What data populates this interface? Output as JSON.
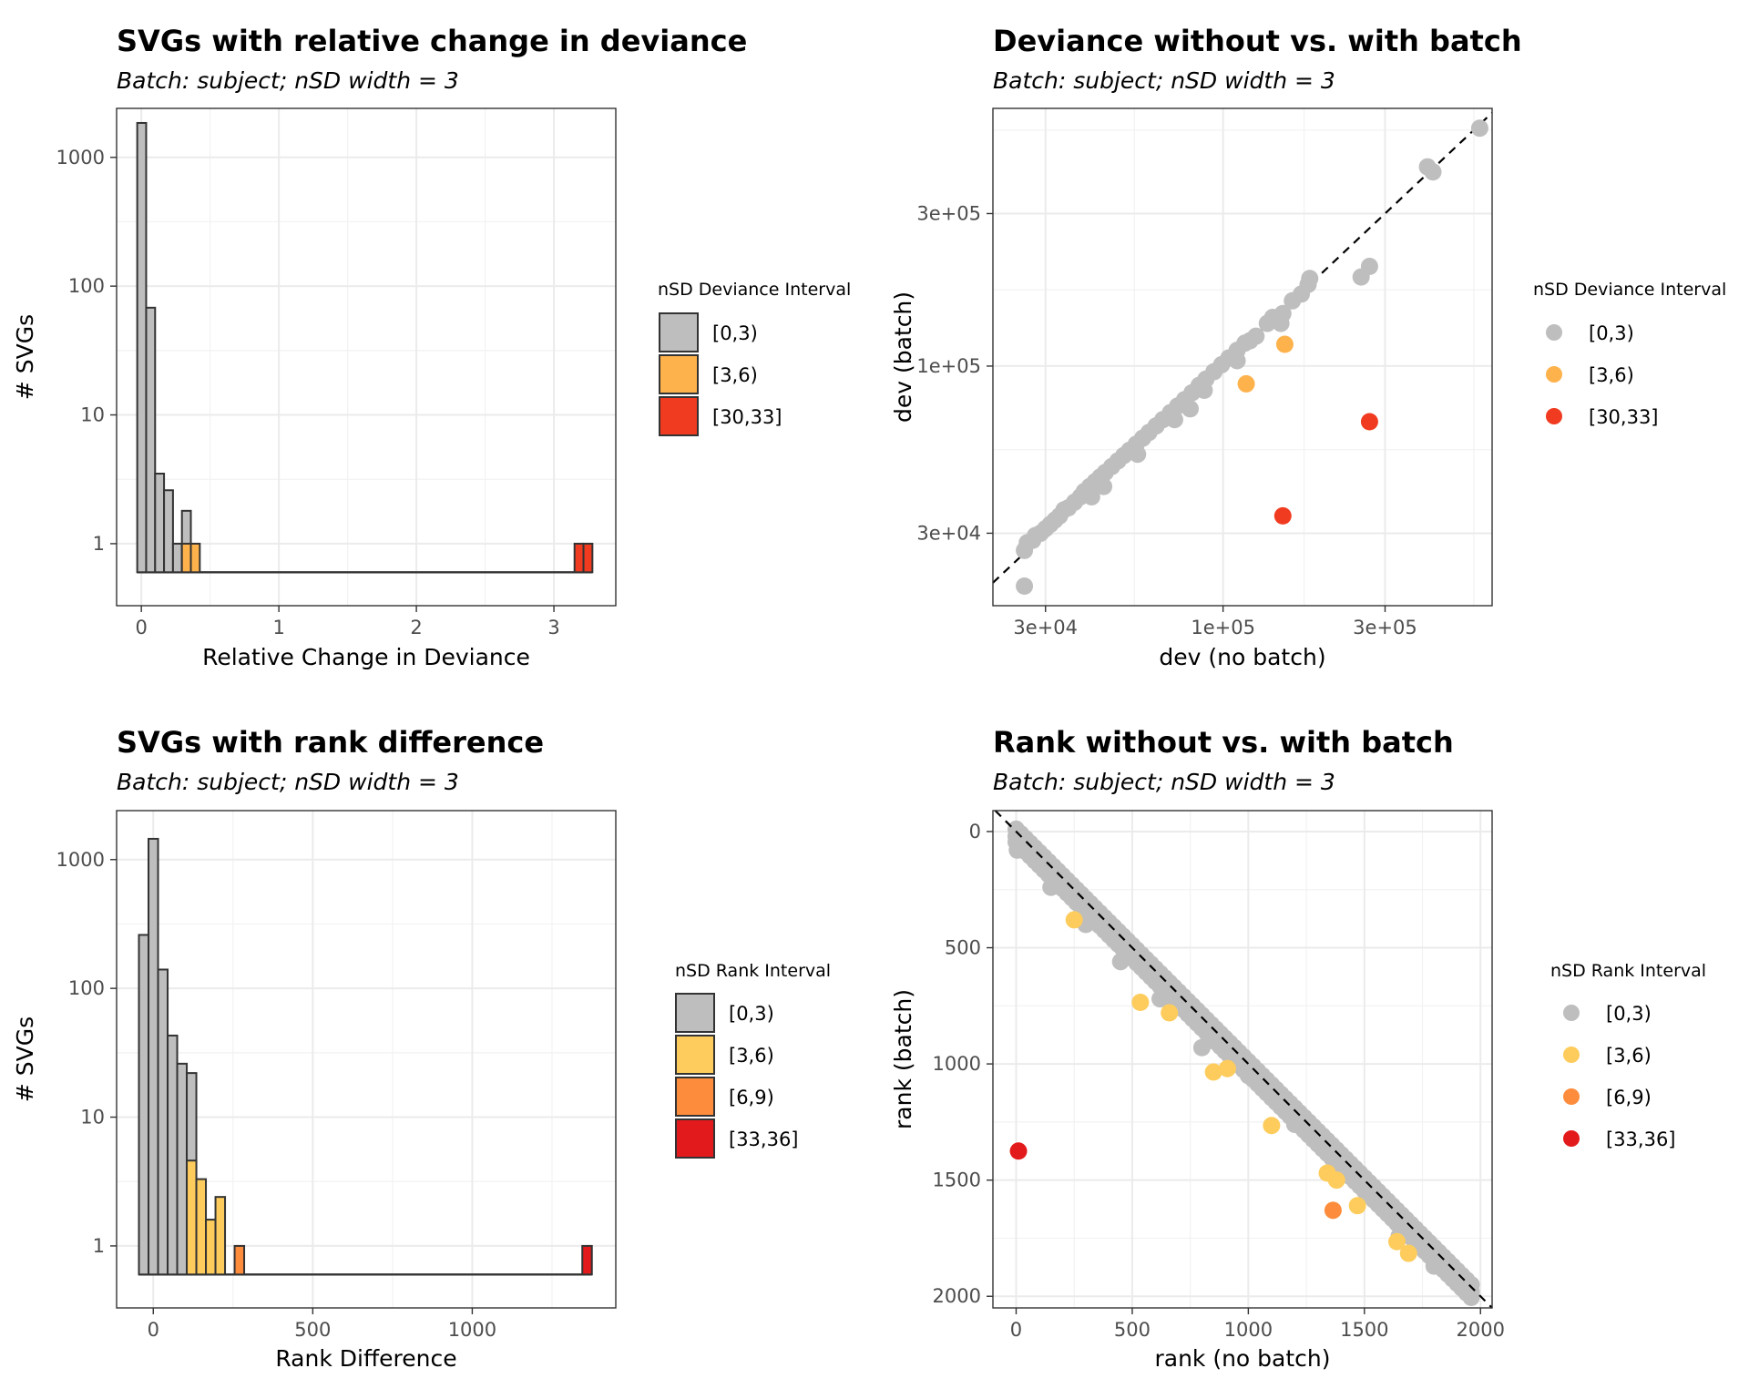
{
  "chart_data": [
    {
      "type": "bar",
      "title": "SVGs with relative change in deviance",
      "subtitle": "Batch: subject; nSD width = 3",
      "xlabel": "Relative Change in Deviance",
      "ylabel": "# SVGs",
      "xlim": [
        -0.18,
        3.45
      ],
      "ylim": [
        0.33,
        2400
      ],
      "y_scale": "log10",
      "y_baseline": 0.6,
      "xticks": [
        0,
        1,
        2,
        3
      ],
      "xtick_labels": [
        "0",
        "1",
        "2",
        "3"
      ],
      "yticks": [
        1,
        10,
        100,
        1000
      ],
      "ytick_labels": [
        "1",
        "10",
        "100",
        "1000"
      ],
      "grid": true,
      "bin_width": 0.065,
      "bars": [
        {
          "x0": -0.03,
          "x1": 0.035,
          "count": 1850,
          "group": "[0,3)"
        },
        {
          "x0": 0.035,
          "x1": 0.1,
          "count": 68,
          "group": "[0,3)"
        },
        {
          "x0": 0.1,
          "x1": 0.165,
          "count": 3.5,
          "group": "[0,3)"
        },
        {
          "x0": 0.165,
          "x1": 0.23,
          "count": 2.6,
          "group": "[0,3)"
        },
        {
          "x0": 0.23,
          "x1": 0.295,
          "count": 1,
          "group": "[0,3)"
        },
        {
          "x0": 0.295,
          "x1": 0.36,
          "count": 1.8,
          "group": "[0,3)"
        },
        {
          "x0": 0.295,
          "x1": 0.36,
          "count": 1,
          "group": "[3,6)"
        },
        {
          "x0": 0.36,
          "x1": 0.425,
          "count": 1,
          "group": "[3,6)"
        },
        {
          "x0": 3.15,
          "x1": 3.215,
          "count": 1,
          "group": "[30,33]"
        },
        {
          "x0": 3.215,
          "x1": 3.28,
          "count": 1,
          "group": "[30,33]"
        }
      ],
      "legend": {
        "title": "nSD Deviance Interval",
        "placement": "right",
        "entries": [
          {
            "label": "[0,3)",
            "color": "#bebebe"
          },
          {
            "label": "[3,6)",
            "color": "#feb24c"
          },
          {
            "label": "[30,33]",
            "color": "#f03b20"
          }
        ]
      }
    },
    {
      "type": "scatter",
      "title": "Deviance without vs. with batch",
      "subtitle": "Batch: subject; nSD width = 3",
      "xlabel": "dev (no batch)",
      "ylabel": "dev (batch)",
      "x_scale": "log10",
      "y_scale": "log10",
      "xlim": [
        21000,
        620000
      ],
      "ylim": [
        17800,
        640000
      ],
      "xticks": [
        30000,
        100000,
        300000
      ],
      "xtick_labels": [
        "3e+04",
        "1e+05",
        "3e+05"
      ],
      "yticks": [
        30000,
        100000,
        300000
      ],
      "ytick_labels": [
        "3e+04",
        "1e+05",
        "3e+05"
      ],
      "grid": true,
      "reference_line": "y = x (dashed)",
      "points": [
        {
          "x": 26000,
          "y": 20500,
          "group": "[0,3)"
        },
        {
          "x": 26000,
          "y": 26500,
          "group": "[0,3)"
        },
        {
          "x": 26500,
          "y": 28000,
          "group": "[0,3)"
        },
        {
          "x": 27500,
          "y": 28500,
          "group": "[0,3)"
        },
        {
          "x": 28000,
          "y": 29500,
          "group": "[0,3)"
        },
        {
          "x": 29000,
          "y": 30000,
          "group": "[0,3)"
        },
        {
          "x": 30000,
          "y": 31000,
          "group": "[0,3)"
        },
        {
          "x": 31000,
          "y": 32000,
          "group": "[0,3)"
        },
        {
          "x": 32000,
          "y": 33000,
          "group": "[0,3)"
        },
        {
          "x": 33000,
          "y": 34000,
          "group": "[0,3)"
        },
        {
          "x": 34000,
          "y": 35500,
          "group": "[0,3)"
        },
        {
          "x": 35000,
          "y": 36000,
          "group": "[0,3)"
        },
        {
          "x": 36500,
          "y": 37500,
          "group": "[0,3)"
        },
        {
          "x": 38000,
          "y": 39000,
          "group": "[0,3)"
        },
        {
          "x": 39000,
          "y": 40500,
          "group": "[0,3)"
        },
        {
          "x": 40500,
          "y": 42000,
          "group": "[0,3)"
        },
        {
          "x": 42000,
          "y": 43500,
          "group": "[0,3)"
        },
        {
          "x": 43500,
          "y": 45000,
          "group": "[0,3)"
        },
        {
          "x": 45000,
          "y": 46500,
          "group": "[0,3)"
        },
        {
          "x": 47000,
          "y": 48500,
          "group": "[0,3)"
        },
        {
          "x": 49000,
          "y": 50500,
          "group": "[0,3)"
        },
        {
          "x": 51000,
          "y": 52500,
          "group": "[0,3)"
        },
        {
          "x": 53000,
          "y": 54500,
          "group": "[0,3)"
        },
        {
          "x": 55500,
          "y": 57000,
          "group": "[0,3)"
        },
        {
          "x": 58000,
          "y": 59500,
          "group": "[0,3)"
        },
        {
          "x": 60500,
          "y": 62000,
          "group": "[0,3)"
        },
        {
          "x": 63500,
          "y": 65000,
          "group": "[0,3)"
        },
        {
          "x": 66500,
          "y": 68000,
          "group": "[0,3)"
        },
        {
          "x": 70000,
          "y": 71500,
          "group": "[0,3)"
        },
        {
          "x": 73500,
          "y": 75000,
          "group": "[0,3)"
        },
        {
          "x": 77000,
          "y": 78500,
          "group": "[0,3)"
        },
        {
          "x": 81000,
          "y": 82500,
          "group": "[0,3)"
        },
        {
          "x": 85000,
          "y": 87000,
          "group": "[0,3)"
        },
        {
          "x": 89000,
          "y": 91000,
          "group": "[0,3)"
        },
        {
          "x": 94000,
          "y": 96000,
          "group": "[0,3)"
        },
        {
          "x": 99000,
          "y": 101000,
          "group": "[0,3)"
        },
        {
          "x": 104000,
          "y": 106000,
          "group": "[0,3)"
        },
        {
          "x": 110000,
          "y": 112000,
          "group": "[0,3)"
        },
        {
          "x": 116000,
          "y": 118000,
          "group": "[0,3)"
        },
        {
          "x": 125000,
          "y": 124000,
          "group": "[0,3)"
        },
        {
          "x": 135000,
          "y": 136000,
          "group": "[0,3)"
        },
        {
          "x": 150000,
          "y": 146000,
          "group": "[0,3)"
        },
        {
          "x": 160000,
          "y": 160000,
          "group": "[0,3)"
        },
        {
          "x": 170000,
          "y": 168000,
          "group": "[0,3)"
        },
        {
          "x": 178000,
          "y": 180000,
          "group": "[0,3)"
        },
        {
          "x": 180000,
          "y": 188000,
          "group": "[0,3)"
        },
        {
          "x": 140000,
          "y": 142000,
          "group": "[0,3)"
        },
        {
          "x": 148000,
          "y": 136000,
          "group": "[0,3)"
        },
        {
          "x": 41000,
          "y": 39000,
          "group": "[0,3)"
        },
        {
          "x": 44500,
          "y": 42000,
          "group": "[0,3)"
        },
        {
          "x": 56000,
          "y": 53000,
          "group": "[0,3)"
        },
        {
          "x": 72000,
          "y": 68000,
          "group": "[0,3)"
        },
        {
          "x": 80000,
          "y": 73500,
          "group": "[0,3)"
        },
        {
          "x": 88000,
          "y": 84000,
          "group": "[0,3)"
        },
        {
          "x": 110000,
          "y": 104000,
          "group": "[0,3)"
        },
        {
          "x": 120000,
          "y": 120000,
          "group": "[0,3)"
        },
        {
          "x": 255000,
          "y": 190000,
          "group": "[0,3)"
        },
        {
          "x": 270000,
          "y": 205000,
          "group": "[0,3)"
        },
        {
          "x": 400000,
          "y": 420000,
          "group": "[0,3)"
        },
        {
          "x": 415000,
          "y": 405000,
          "group": "[0,3)"
        },
        {
          "x": 570000,
          "y": 555000,
          "group": "[0,3)"
        },
        {
          "x": 117000,
          "y": 88000,
          "group": "[3,6)"
        },
        {
          "x": 152000,
          "y": 117000,
          "group": "[3,6)"
        },
        {
          "x": 150000,
          "y": 34000,
          "group": "[30,33]"
        },
        {
          "x": 270000,
          "y": 67000,
          "group": "[30,33]"
        }
      ],
      "legend": {
        "title": "nSD Deviance Interval",
        "placement": "right",
        "entries": [
          {
            "label": "[0,3)",
            "color": "#bebebe"
          },
          {
            "label": "[3,6)",
            "color": "#feb24c"
          },
          {
            "label": "[30,33]",
            "color": "#f03b20"
          }
        ]
      }
    },
    {
      "type": "bar",
      "title": "SVGs with rank difference",
      "subtitle": "Batch: subject; nSD width = 3",
      "xlabel": "Rank Difference",
      "ylabel": "# SVGs",
      "xlim": [
        -115,
        1450
      ],
      "ylim": [
        0.33,
        2400
      ],
      "y_scale": "log10",
      "y_baseline": 0.6,
      "xticks": [
        0,
        500,
        1000
      ],
      "xtick_labels": [
        "0",
        "500",
        "1000"
      ],
      "yticks": [
        1,
        10,
        100,
        1000
      ],
      "ytick_labels": [
        "1",
        "10",
        "100",
        "1000"
      ],
      "grid": true,
      "bin_width": 30,
      "bars": [
        {
          "x0": -45,
          "x1": -15,
          "count": 260,
          "group": "[0,3)"
        },
        {
          "x0": -15,
          "x1": 15,
          "count": 1450,
          "group": "[0,3)"
        },
        {
          "x0": 15,
          "x1": 45,
          "count": 140,
          "group": "[0,3)"
        },
        {
          "x0": 45,
          "x1": 75,
          "count": 43,
          "group": "[0,3)"
        },
        {
          "x0": 75,
          "x1": 105,
          "count": 26,
          "group": "[0,3)"
        },
        {
          "x0": 105,
          "x1": 135,
          "count": 22,
          "group": "[0,3)"
        },
        {
          "x0": 105,
          "x1": 135,
          "count": 4.6,
          "group": "[3,6)"
        },
        {
          "x0": 135,
          "x1": 165,
          "count": 3.3,
          "group": "[3,6)"
        },
        {
          "x0": 165,
          "x1": 195,
          "count": 1.6,
          "group": "[3,6)"
        },
        {
          "x0": 195,
          "x1": 225,
          "count": 2.4,
          "group": "[3,6)"
        },
        {
          "x0": 255,
          "x1": 285,
          "count": 1,
          "group": "[6,9)"
        },
        {
          "x0": 1345,
          "x1": 1375,
          "count": 1,
          "group": "[33,36]"
        }
      ],
      "legend": {
        "title": "nSD Rank Interval",
        "placement": "right",
        "entries": [
          {
            "label": "[0,3)",
            "color": "#bebebe"
          },
          {
            "label": "[3,6)",
            "color": "#fecc5c"
          },
          {
            "label": "[6,9)",
            "color": "#fd8d3c"
          },
          {
            "label": "[33,36]",
            "color": "#e31a1c"
          }
        ]
      }
    },
    {
      "type": "scatter",
      "title": "Rank without vs. with batch",
      "subtitle": "Batch: subject; nSD width = 3",
      "xlabel": "rank (no batch)",
      "ylabel": "rank (batch)",
      "xlim": [
        -100,
        2050
      ],
      "ylim": [
        2050,
        -90
      ],
      "y_reversed": true,
      "xticks": [
        0,
        500,
        1000,
        1500,
        2000
      ],
      "xtick_labels": [
        "0",
        "500",
        "1000",
        "1500",
        "2000"
      ],
      "yticks": [
        0,
        500,
        1000,
        1500,
        2000
      ],
      "ytick_labels": [
        "0",
        "500",
        "1000",
        "1500",
        "2000"
      ],
      "grid": true,
      "reference_line": "y = x (dashed)",
      "points_band": {
        "x_from": 0,
        "x_to": 1970,
        "step": 20,
        "offsets": [
          -10,
          20,
          45
        ],
        "group": "[0,3)"
      },
      "points": [
        {
          "x": 5,
          "y": 80,
          "group": "[0,3)"
        },
        {
          "x": 150,
          "y": 240,
          "group": "[0,3)"
        },
        {
          "x": 300,
          "y": 400,
          "group": "[0,3)"
        },
        {
          "x": 450,
          "y": 560,
          "group": "[0,3)"
        },
        {
          "x": 620,
          "y": 720,
          "group": "[0,3)"
        },
        {
          "x": 800,
          "y": 930,
          "group": "[0,3)"
        },
        {
          "x": 1000,
          "y": 1050,
          "group": "[0,3)"
        },
        {
          "x": 1200,
          "y": 1260,
          "group": "[0,3)"
        },
        {
          "x": 1400,
          "y": 1470,
          "group": "[0,3)"
        },
        {
          "x": 1650,
          "y": 1740,
          "group": "[0,3)"
        },
        {
          "x": 1800,
          "y": 1870,
          "group": "[0,3)"
        },
        {
          "x": 250,
          "y": 380,
          "group": "[3,6)"
        },
        {
          "x": 535,
          "y": 735,
          "group": "[3,6)"
        },
        {
          "x": 660,
          "y": 780,
          "group": "[3,6)"
        },
        {
          "x": 850,
          "y": 1035,
          "group": "[3,6)"
        },
        {
          "x": 910,
          "y": 1020,
          "group": "[3,6)"
        },
        {
          "x": 1100,
          "y": 1265,
          "group": "[3,6)"
        },
        {
          "x": 1340,
          "y": 1470,
          "group": "[3,6)"
        },
        {
          "x": 1380,
          "y": 1500,
          "group": "[3,6)"
        },
        {
          "x": 1470,
          "y": 1610,
          "group": "[3,6)"
        },
        {
          "x": 1640,
          "y": 1765,
          "group": "[3,6)"
        },
        {
          "x": 1690,
          "y": 1815,
          "group": "[3,6)"
        },
        {
          "x": 1365,
          "y": 1630,
          "group": "[6,9)"
        },
        {
          "x": 10,
          "y": 1375,
          "group": "[33,36]"
        }
      ],
      "legend": {
        "title": "nSD Rank Interval",
        "placement": "right",
        "entries": [
          {
            "label": "[0,3)",
            "color": "#bebebe"
          },
          {
            "label": "[3,6)",
            "color": "#fecc5c"
          },
          {
            "label": "[6,9)",
            "color": "#fd8d3c"
          },
          {
            "label": "[33,36]",
            "color": "#e31a1c"
          }
        ]
      }
    }
  ]
}
